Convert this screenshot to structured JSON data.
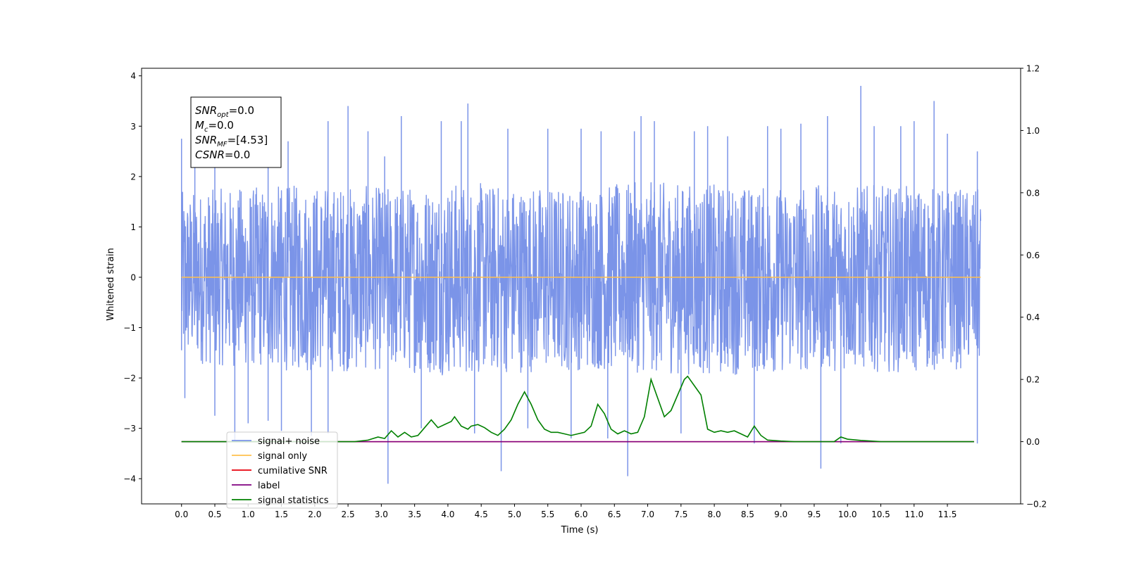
{
  "chart_data": {
    "type": "line",
    "xlabel": "Time (s)",
    "ylabel": "Whitened strain",
    "xlim": [
      -0.6,
      12.6
    ],
    "ylim": [
      -4.5,
      4.15
    ],
    "y2lim": [
      -0.2,
      1.2
    ],
    "x_ticks": [
      0.0,
      0.5,
      1.0,
      1.5,
      2.0,
      2.5,
      3.0,
      3.5,
      4.0,
      4.5,
      5.0,
      5.5,
      6.0,
      6.5,
      7.0,
      7.5,
      8.0,
      8.5,
      9.0,
      9.5,
      10.0,
      10.5,
      11.0,
      11.5
    ],
    "x_tick_labels": [
      "0.0",
      "0.5",
      "1.0",
      "1.5",
      "2.0",
      "2.5",
      "3.0",
      "3.5",
      "4.0",
      "4.5",
      "5.0",
      "5.5",
      "6.0",
      "6.5",
      "7.0",
      "7.5",
      "8.0",
      "8.5",
      "9.0",
      "9.5",
      "10.0",
      "10.5",
      "11.0",
      "11.5"
    ],
    "y_ticks": [
      -4,
      -3,
      -2,
      -1,
      0,
      1,
      2,
      3,
      4
    ],
    "y_tick_labels": [
      "−4",
      "−3",
      "−2",
      "−1",
      "0",
      "1",
      "2",
      "3",
      "4"
    ],
    "y2_ticks": [
      -0.2,
      0.0,
      0.2,
      0.4,
      0.6,
      0.8,
      1.0,
      1.2
    ],
    "y2_tick_labels": [
      "−0.2",
      "0.0",
      "0.2",
      "0.4",
      "0.6",
      "0.8",
      "1.0",
      "1.2"
    ],
    "grid": false,
    "legend_position": "lower-left",
    "noise": {
      "x_range": [
        0.0,
        12.0
      ],
      "band_min": [
        -1.7,
        -1.8,
        -1.9,
        -1.85,
        -1.95,
        -1.9,
        -1.85,
        -1.9,
        -1.95,
        -1.9,
        -1.85,
        -1.9,
        -1.8
      ],
      "band_max": [
        1.7,
        1.8,
        1.85,
        1.8,
        1.9,
        1.85,
        1.8,
        1.9,
        1.85,
        1.8,
        1.85,
        1.8,
        1.75
      ],
      "spikes": [
        [
          0.0,
          2.75
        ],
        [
          0.0,
          -1.45
        ],
        [
          0.05,
          -2.4
        ],
        [
          0.2,
          2.55
        ],
        [
          0.5,
          -2.75
        ],
        [
          0.5,
          2.2
        ],
        [
          0.8,
          -3.25
        ],
        [
          1.0,
          -2.9
        ],
        [
          1.3,
          -2.85
        ],
        [
          1.3,
          2.9
        ],
        [
          1.5,
          -3.05
        ],
        [
          1.6,
          2.7
        ],
        [
          1.95,
          -3.15
        ],
        [
          2.2,
          3.1
        ],
        [
          2.2,
          -3.1
        ],
        [
          2.5,
          3.4
        ],
        [
          2.8,
          2.9
        ],
        [
          3.05,
          2.4
        ],
        [
          3.1,
          -4.1
        ],
        [
          3.3,
          3.2
        ],
        [
          3.6,
          -3.0
        ],
        [
          3.9,
          3.1
        ],
        [
          4.2,
          3.1
        ],
        [
          4.3,
          3.45
        ],
        [
          4.4,
          -3.1
        ],
        [
          4.8,
          -3.85
        ],
        [
          4.9,
          2.95
        ],
        [
          5.2,
          -3.0
        ],
        [
          5.5,
          2.95
        ],
        [
          5.85,
          -3.2
        ],
        [
          6.0,
          2.95
        ],
        [
          6.3,
          2.9
        ],
        [
          6.4,
          -3.2
        ],
        [
          6.7,
          -3.95
        ],
        [
          6.8,
          2.9
        ],
        [
          6.9,
          3.2
        ],
        [
          7.1,
          3.1
        ],
        [
          7.5,
          -3.1
        ],
        [
          7.7,
          2.9
        ],
        [
          7.9,
          3.0
        ],
        [
          8.2,
          2.8
        ],
        [
          8.6,
          -3.3
        ],
        [
          8.8,
          3.0
        ],
        [
          9.0,
          2.95
        ],
        [
          9.3,
          3.05
        ],
        [
          9.6,
          -3.8
        ],
        [
          9.7,
          3.2
        ],
        [
          9.9,
          -3.3
        ],
        [
          10.2,
          3.8
        ],
        [
          10.4,
          3.0
        ],
        [
          10.8,
          3.0
        ],
        [
          11.0,
          3.1
        ],
        [
          11.3,
          3.5
        ],
        [
          11.5,
          2.85
        ],
        [
          11.95,
          2.5
        ],
        [
          11.95,
          -3.3
        ]
      ]
    },
    "series": [
      {
        "name": "signal+ noise",
        "color": "#7b94e8",
        "axis": "left",
        "style": "noise"
      },
      {
        "name": "signal only",
        "color": "#ffc04d",
        "axis": "left",
        "x": [
          0.0,
          12.0
        ],
        "y": [
          0.0,
          0.0
        ]
      },
      {
        "name": "cumilative SNR",
        "color": "#e8000b",
        "axis": "right",
        "x": [
          0.0,
          11.9
        ],
        "y": [
          0.0,
          0.0
        ]
      },
      {
        "name": "label",
        "color": "#800080",
        "axis": "right",
        "x": [
          0.0,
          11.9
        ],
        "y": [
          0.0,
          0.0
        ]
      },
      {
        "name": "signal statistics",
        "color": "#008000",
        "axis": "right",
        "x": [
          0.0,
          0.1,
          1.0,
          2.0,
          2.6,
          2.8,
          2.95,
          3.05,
          3.15,
          3.25,
          3.35,
          3.45,
          3.55,
          3.65,
          3.75,
          3.85,
          3.95,
          4.05,
          4.1,
          4.2,
          4.3,
          4.35,
          4.45,
          4.55,
          4.65,
          4.75,
          4.85,
          4.95,
          5.05,
          5.15,
          5.25,
          5.35,
          5.45,
          5.55,
          5.65,
          5.75,
          5.85,
          5.95,
          6.05,
          6.15,
          6.25,
          6.35,
          6.45,
          6.55,
          6.65,
          6.75,
          6.85,
          6.95,
          7.05,
          7.15,
          7.25,
          7.35,
          7.45,
          7.55,
          7.6,
          7.7,
          7.8,
          7.9,
          8.0,
          8.1,
          8.2,
          8.3,
          8.4,
          8.5,
          8.6,
          8.7,
          8.8,
          9.0,
          9.2,
          9.5,
          9.8,
          9.9,
          10.0,
          10.2,
          10.5,
          11.0,
          11.5,
          11.9
        ],
        "y": [
          0.0,
          0.0,
          0.0,
          0.0,
          0.0,
          0.005,
          0.015,
          0.01,
          0.035,
          0.015,
          0.03,
          0.015,
          0.02,
          0.045,
          0.07,
          0.045,
          0.055,
          0.065,
          0.08,
          0.05,
          0.04,
          0.05,
          0.055,
          0.045,
          0.03,
          0.02,
          0.04,
          0.07,
          0.12,
          0.16,
          0.12,
          0.07,
          0.04,
          0.03,
          0.03,
          0.025,
          0.02,
          0.025,
          0.03,
          0.05,
          0.12,
          0.09,
          0.04,
          0.025,
          0.035,
          0.025,
          0.03,
          0.08,
          0.2,
          0.14,
          0.08,
          0.1,
          0.15,
          0.2,
          0.21,
          0.18,
          0.15,
          0.04,
          0.03,
          0.035,
          0.03,
          0.035,
          0.025,
          0.015,
          0.05,
          0.02,
          0.005,
          0.002,
          0.0,
          0.0,
          0.0,
          0.015,
          0.008,
          0.004,
          0.0,
          0.0,
          0.0,
          0.0
        ]
      }
    ],
    "annotation": {
      "lines": [
        {
          "base": "SNR",
          "sub": "opt",
          "value": "=0.0"
        },
        {
          "base": "M",
          "sub": "c",
          "value": "=0.0"
        },
        {
          "base": "SNR",
          "sub": "MF",
          "value": "=[4.53]"
        },
        {
          "base": "CSNR",
          "sub": "",
          "value": "=0.0"
        }
      ]
    }
  }
}
